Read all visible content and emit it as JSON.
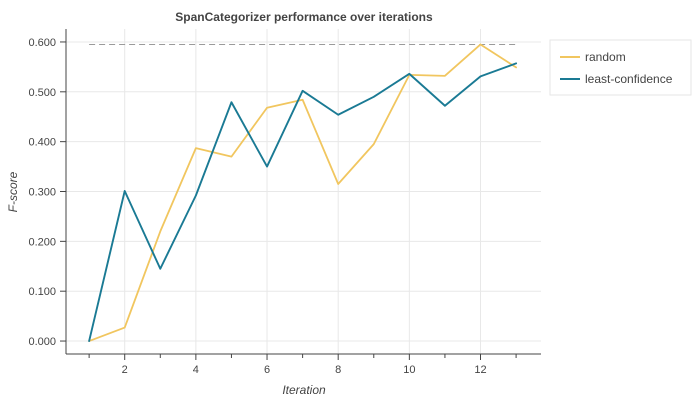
{
  "chart_data": {
    "type": "line",
    "title": "SpanCategorizer performance over iterations",
    "xlabel": "Iteration",
    "ylabel": "F-score",
    "xlim": [
      0.35,
      13.7
    ],
    "ylim": [
      -0.026,
      0.626
    ],
    "x_ticks": [
      2,
      4,
      6,
      8,
      10,
      12
    ],
    "x_minor_ticks": [
      1,
      3,
      5,
      7,
      9,
      11,
      13
    ],
    "x_tick_labels": [
      "2",
      "4",
      "6",
      "8",
      "10",
      "12"
    ],
    "y_ticks": [
      0,
      0.1,
      0.2,
      0.3,
      0.4,
      0.5,
      0.6
    ],
    "y_tick_labels": [
      "0.000",
      "0.100",
      "0.200",
      "0.300",
      "0.400",
      "0.500",
      "0.600"
    ],
    "grid": true,
    "legend_position": "top-right-outside",
    "x": [
      1,
      2,
      3,
      4,
      5,
      6,
      7,
      8,
      9,
      10,
      11,
      12,
      13
    ],
    "series": [
      {
        "name": "random",
        "color": "#f1c65f",
        "values": [
          0.0,
          0.027,
          0.22,
          0.387,
          0.37,
          0.468,
          0.484,
          0.315,
          0.395,
          0.534,
          0.532,
          0.595,
          0.549
        ]
      },
      {
        "name": "least-confidence",
        "color": "#1a7a94",
        "values": [
          0.0,
          0.301,
          0.145,
          0.292,
          0.479,
          0.35,
          0.502,
          0.454,
          0.49,
          0.536,
          0.472,
          0.531,
          0.557
        ]
      }
    ],
    "reference_line": {
      "value": 0.595,
      "x_range": [
        1,
        13
      ],
      "style": "dashed",
      "color": "#9a9a9a"
    },
    "colors": {
      "grid": "#e8e8e8",
      "axis": "#444444",
      "legend_border": "#e6e6e6"
    }
  }
}
